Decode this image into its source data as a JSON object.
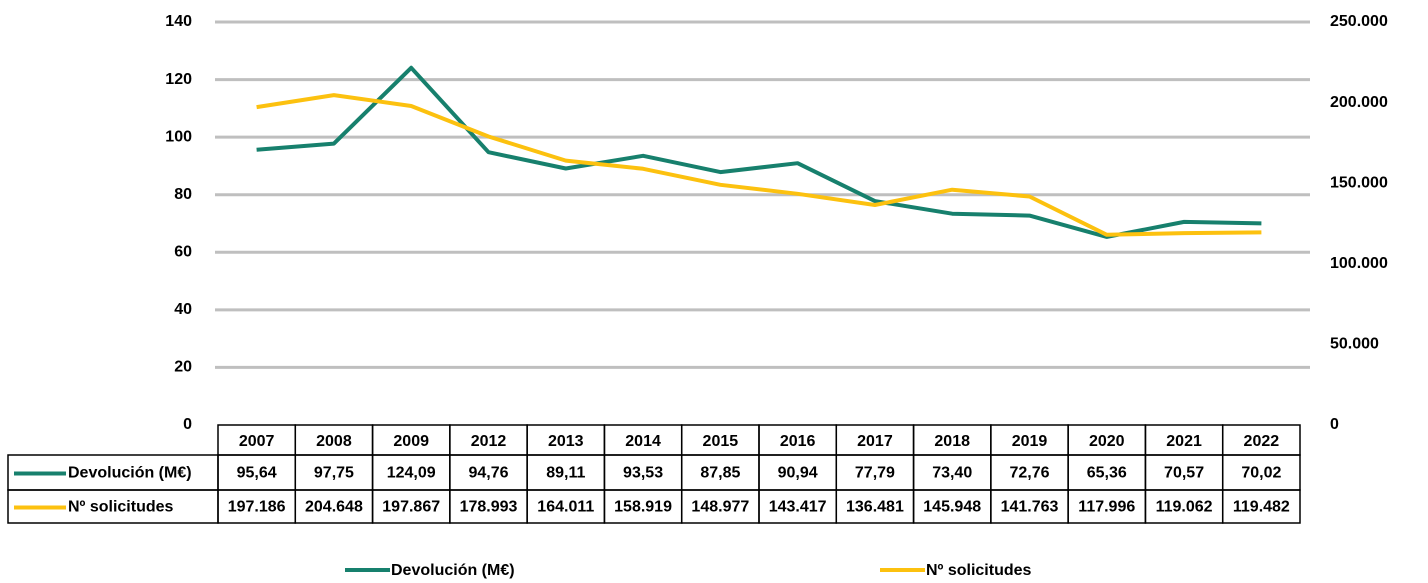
{
  "chart_data": {
    "type": "line",
    "categories": [
      "2007",
      "2008",
      "2009",
      "2012",
      "2013",
      "2014",
      "2015",
      "2016",
      "2017",
      "2018",
      "2019",
      "2020",
      "2021",
      "2022"
    ],
    "series": [
      {
        "name": "Devolución (M€)",
        "color": "#17806d",
        "values": [
          95.64,
          97.75,
          124.09,
          94.76,
          89.11,
          93.53,
          87.85,
          90.94,
          77.79,
          73.4,
          72.76,
          65.36,
          70.57,
          70.02
        ],
        "value_labels": [
          "95,64",
          "97,75",
          "124,09",
          "94,76",
          "89,11",
          "93,53",
          "87,85",
          "90,94",
          "77,79",
          "73,40",
          "72,76",
          "65,36",
          "70,57",
          "70,02"
        ]
      },
      {
        "name": "Nº solicitudes",
        "color": "#fcc10f",
        "axis": "y2",
        "values": [
          197186,
          204648,
          197867,
          178993,
          164011,
          158919,
          148977,
          143417,
          136481,
          145948,
          141763,
          117996,
          119062,
          119482
        ],
        "value_labels": [
          "197.186",
          "204.648",
          "197.867",
          "178.993",
          "164.011",
          "158.919",
          "148.977",
          "143.417",
          "136.481",
          "145.948",
          "141.763",
          "117.996",
          "119.062",
          "119.482"
        ]
      }
    ],
    "ylim": [
      0,
      140
    ],
    "yticks": [
      0,
      20,
      40,
      60,
      80,
      100,
      120,
      140
    ],
    "y2lim": [
      0,
      250000
    ],
    "y2ticks": [
      0,
      {
        "value": 50000,
        "label": "50.000"
      },
      {
        "value": 100000,
        "label": "100.000"
      },
      {
        "value": 150000,
        "label": "150.000"
      },
      {
        "value": 200000,
        "label": "200.000"
      },
      {
        "value": 250000,
        "label": "250.000"
      }
    ],
    "grid": true
  }
}
